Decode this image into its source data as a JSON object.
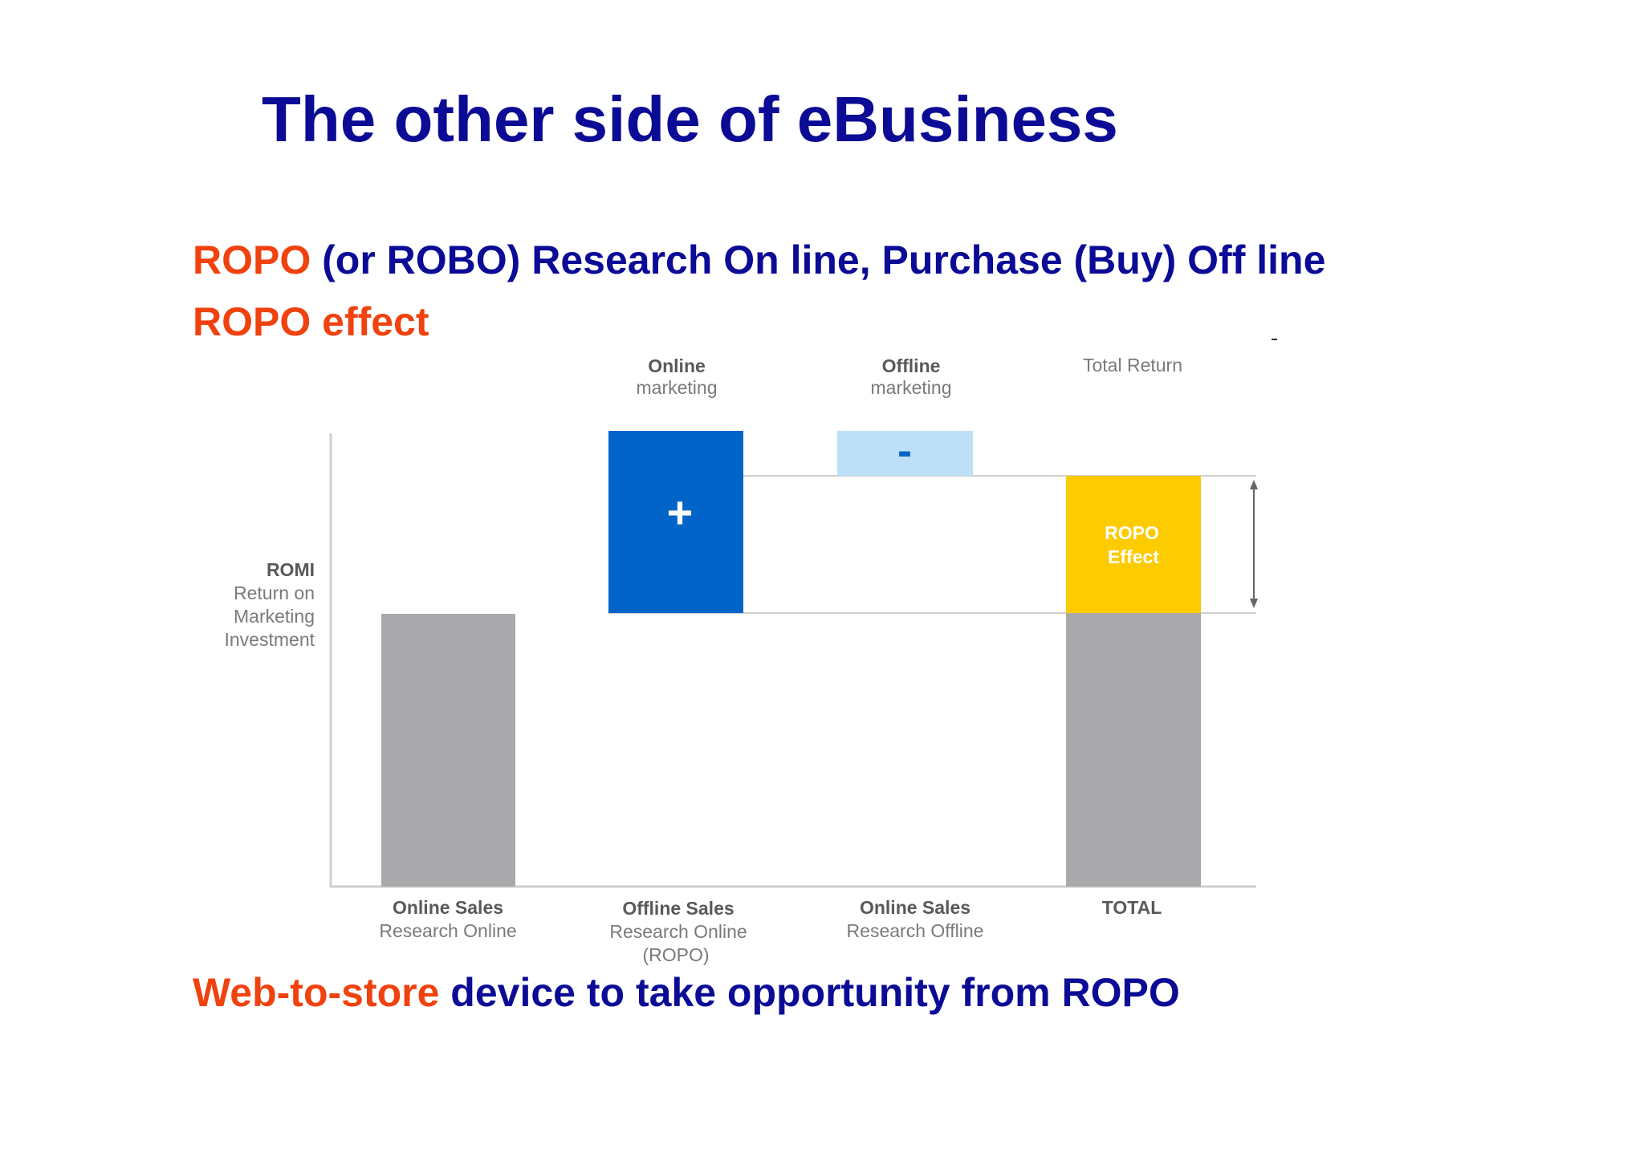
{
  "title": "The other side of eBusiness",
  "lines": {
    "ropo_term": "ROPO",
    "ropo_definition": " (or ROBO) Research On line, Purchase (Buy) Off line",
    "ropo_effect": "ROPO effect",
    "web_to_store": "Web-to-store",
    "web_to_store_text": "  device to take opportunity from ROPO"
  },
  "diagram": {
    "y_axis_label": {
      "title": "ROMI",
      "lines": [
        "Return on",
        "Marketing",
        "Investment"
      ]
    },
    "top_labels": {
      "online_marketing": {
        "bold": "Online",
        "sub": "marketing"
      },
      "offline_marketing": {
        "bold": "Offline",
        "sub": "marketing"
      },
      "total_return": "Total Return"
    },
    "bars": {
      "online_plus": "+",
      "offline_minus": "-",
      "ropo_effect": [
        "ROPO",
        "Effect"
      ]
    },
    "bottom_labels": [
      {
        "bold": "Online Sales",
        "lines": [
          "Research Online"
        ]
      },
      {
        "bold": "Offline Sales",
        "lines": [
          "Research Online",
          "(ROPO)"
        ]
      },
      {
        "bold": "Online Sales",
        "lines": [
          "Research Offline"
        ]
      },
      {
        "bold": "TOTAL",
        "lines": []
      }
    ],
    "colors": {
      "gray_bar": "#a9a9ab",
      "online_bar": "#0064c8",
      "offline_bar": "#bddff7",
      "ropo_bar": "#fccb00",
      "axis": "#cfcfcf"
    }
  }
}
